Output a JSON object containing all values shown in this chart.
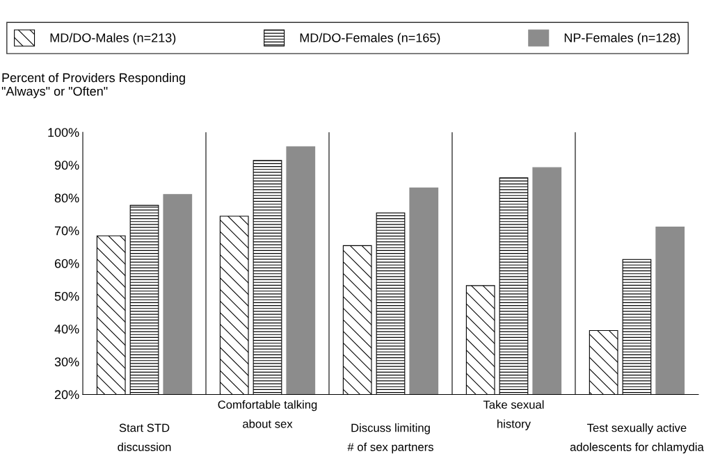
{
  "chart_data": {
    "type": "bar",
    "ylabel": "Percent of Providers Responding\n\"Always\" or \"Often\"",
    "categories": [
      "Start STD\ndiscussion",
      "Comfortable talking\nabout sex",
      "Discuss limiting\n# of sex partners",
      "Take sexual\nhistory",
      "Test sexually active\nadolescents for chlamydia"
    ],
    "series": [
      {
        "name": "MD/DO-Males (n=213)",
        "color": "#000000",
        "values": [
          68.4,
          74.4,
          65.4,
          53.2,
          39.5
        ]
      },
      {
        "name": "MD/DO-Females (n=165)",
        "color": "#000000",
        "values": [
          77.7,
          91.4,
          75.4,
          86.1,
          61.2
        ]
      },
      {
        "name": "NP-Females (n=128)",
        "color": "#8c8c8c",
        "values": [
          81.0,
          95.6,
          83.0,
          89.2,
          71.1
        ]
      }
    ],
    "ylim": [
      20,
      100
    ],
    "yticks": [
      {
        "value": 20,
        "label": "20%"
      },
      {
        "value": 30,
        "label": "30%"
      },
      {
        "value": 40,
        "label": "40%"
      },
      {
        "value": 50,
        "label": "50%"
      },
      {
        "value": 60,
        "label": "60%"
      },
      {
        "value": 70,
        "label": "70%"
      },
      {
        "value": 80,
        "label": "80%"
      },
      {
        "value": 90,
        "label": "90%"
      },
      {
        "value": 100,
        "label": "100%"
      }
    ],
    "grid": "x",
    "legend": "top"
  }
}
